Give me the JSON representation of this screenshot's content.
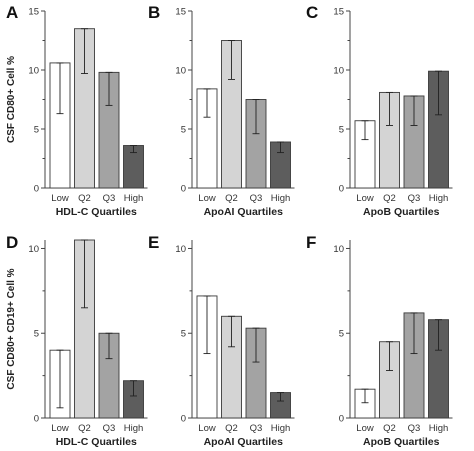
{
  "figure": {
    "row_ylabels": [
      "CSF CD80+ Cell %",
      "CSF CD80+ CD19+ Cell %"
    ]
  },
  "chart_data": [
    {
      "panel": "A",
      "type": "bar",
      "categories": [
        "Low",
        "Q2",
        "Q3",
        "High"
      ],
      "values": [
        10.6,
        13.5,
        9.8,
        3.6
      ],
      "errors": [
        [
          6.3,
          10.6
        ],
        [
          9.7,
          13.5
        ],
        [
          7.0,
          9.8
        ],
        [
          3.0,
          3.6
        ]
      ],
      "ylim": [
        0,
        15
      ],
      "yticks": [
        0,
        5,
        10,
        15
      ],
      "xlabel": "HDL-C Quartiles",
      "ylabel": "CSF CD80+ Cell %",
      "colors": [
        "#ffffff",
        "#d4d4d4",
        "#a3a3a3",
        "#5d5d5d"
      ]
    },
    {
      "panel": "B",
      "type": "bar",
      "categories": [
        "Low",
        "Q2",
        "Q3",
        "High"
      ],
      "values": [
        8.4,
        12.5,
        7.5,
        3.9
      ],
      "errors": [
        [
          6.0,
          8.4
        ],
        [
          9.2,
          12.5
        ],
        [
          4.6,
          7.5
        ],
        [
          3.0,
          3.9
        ]
      ],
      "ylim": [
        0,
        15
      ],
      "yticks": [
        0,
        5,
        10,
        15
      ],
      "xlabel": "ApoAI Quartiles",
      "ylabel": "",
      "colors": [
        "#ffffff",
        "#d4d4d4",
        "#a3a3a3",
        "#5d5d5d"
      ]
    },
    {
      "panel": "C",
      "type": "bar",
      "categories": [
        "Low",
        "Q2",
        "Q3",
        "High"
      ],
      "values": [
        5.7,
        8.1,
        7.8,
        9.9
      ],
      "errors": [
        [
          4.1,
          5.7
        ],
        [
          5.3,
          8.1
        ],
        [
          5.3,
          7.8
        ],
        [
          6.2,
          9.9
        ]
      ],
      "ylim": [
        0,
        15
      ],
      "yticks": [
        0,
        5,
        10,
        15
      ],
      "xlabel": "ApoB Quartiles",
      "ylabel": "",
      "colors": [
        "#ffffff",
        "#d4d4d4",
        "#a3a3a3",
        "#5d5d5d"
      ]
    },
    {
      "panel": "D",
      "type": "bar",
      "categories": [
        "Low",
        "Q2",
        "Q3",
        "High"
      ],
      "values": [
        4.0,
        10.5,
        5.0,
        2.2
      ],
      "errors": [
        [
          0.6,
          4.0
        ],
        [
          6.5,
          10.5
        ],
        [
          3.5,
          5.0
        ],
        [
          1.3,
          2.2
        ]
      ],
      "ylim": [
        0,
        10.5
      ],
      "yticks": [
        0,
        5,
        10
      ],
      "xlabel": "HDL-C Quartiles",
      "ylabel": "CSF CD80+ CD19+ Cell %",
      "colors": [
        "#ffffff",
        "#d4d4d4",
        "#a3a3a3",
        "#5d5d5d"
      ]
    },
    {
      "panel": "E",
      "type": "bar",
      "categories": [
        "Low",
        "Q2",
        "Q3",
        "High"
      ],
      "values": [
        7.2,
        6.0,
        5.3,
        1.5
      ],
      "errors": [
        [
          3.8,
          7.2
        ],
        [
          4.2,
          6.0
        ],
        [
          3.3,
          5.3
        ],
        [
          1.0,
          1.5
        ]
      ],
      "ylim": [
        0,
        10.5
      ],
      "yticks": [
        0,
        5,
        10
      ],
      "xlabel": "ApoAI Quartiles",
      "ylabel": "",
      "colors": [
        "#ffffff",
        "#d4d4d4",
        "#a3a3a3",
        "#5d5d5d"
      ]
    },
    {
      "panel": "F",
      "type": "bar",
      "categories": [
        "Low",
        "Q2",
        "Q3",
        "High"
      ],
      "values": [
        1.7,
        4.5,
        6.2,
        5.8
      ],
      "errors": [
        [
          0.9,
          1.7
        ],
        [
          2.8,
          4.5
        ],
        [
          3.8,
          6.2
        ],
        [
          4.0,
          5.8
        ]
      ],
      "ylim": [
        0,
        10.5
      ],
      "yticks": [
        0,
        5,
        10
      ],
      "xlabel": "ApoB Quartiles",
      "ylabel": "",
      "colors": [
        "#ffffff",
        "#d4d4d4",
        "#a3a3a3",
        "#5d5d5d"
      ]
    }
  ]
}
